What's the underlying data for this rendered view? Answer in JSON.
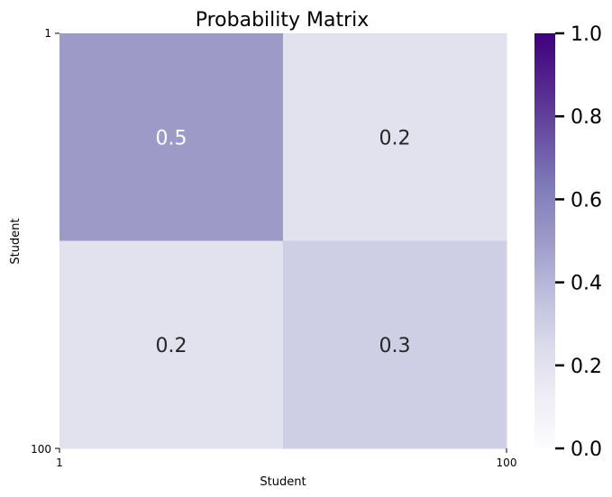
{
  "chart_data": {
    "type": "heatmap",
    "title": "Probability Matrix",
    "xlabel": "Student",
    "ylabel": "Student",
    "x_tick_labels": [
      "1",
      "100"
    ],
    "y_tick_labels": [
      "1",
      "100"
    ],
    "matrix": [
      [
        0.5,
        0.2
      ],
      [
        0.2,
        0.3
      ]
    ],
    "cell_labels": [
      [
        "0.5",
        "0.2"
      ],
      [
        "0.2",
        "0.3"
      ]
    ],
    "colorbar": {
      "range": [
        0.0,
        1.0
      ],
      "tick_labels": [
        "0.0",
        "0.2",
        "0.4",
        "0.6",
        "0.8",
        "1.0"
      ],
      "colormap": "Purples"
    },
    "colors": {
      "light_text": "#ffffff",
      "dark_text": "#262626"
    }
  }
}
